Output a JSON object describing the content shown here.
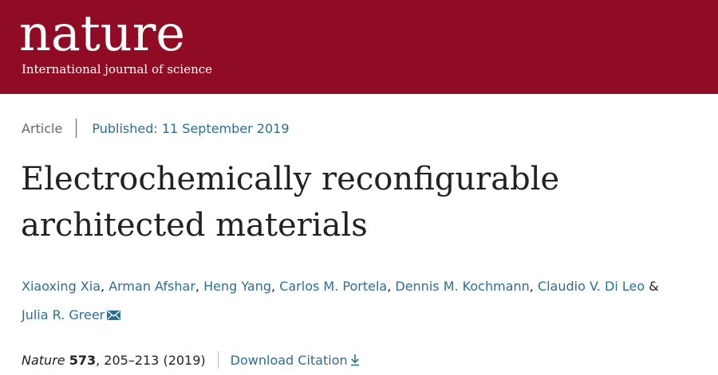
{
  "header": {
    "logo_text": "nature",
    "tagline": "International journal of science"
  },
  "article": {
    "type": "Article",
    "published": "Published: 11 September 2019",
    "title_line1": "Electrochemically reconfigurable",
    "title_line2": "architected materials",
    "authors": [
      "Xiaoxing Xia",
      "Arman Afshar",
      "Heng Yang",
      "Carlos M. Portela",
      "Dennis M. Kochmann",
      "Claudio V. Di Leo",
      "Julia R. Greer"
    ],
    "author_separator": ", ",
    "author_final_separator": " & ",
    "corresponding_icon": "envelope-icon",
    "citation": {
      "journal": "Nature",
      "volume": "573",
      "pages_year": ", 205–213 (2019)",
      "download_label": "Download Citation",
      "download_icon": "download-arrow-icon"
    }
  },
  "colors": {
    "brand": "#8f0c24",
    "link": "#2d6e93",
    "text": "#222222",
    "muted": "#666666"
  }
}
